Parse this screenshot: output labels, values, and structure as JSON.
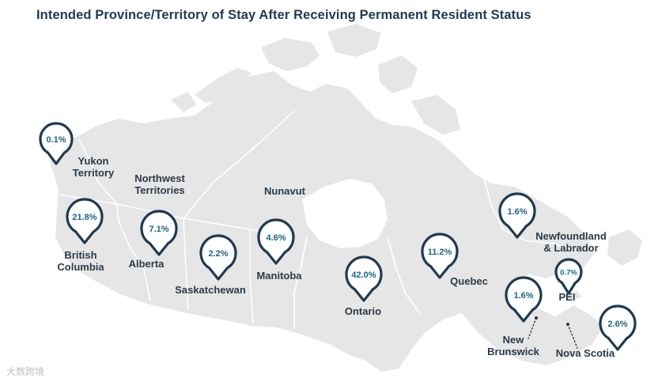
{
  "title": "Intended Province/Territory of Stay After Receiving Permanent Resident Status",
  "watermark": "大数跨境",
  "colors": {
    "map_fill": "#e6e6e6",
    "border": "#ffffff",
    "pin_stroke": "#1f3a52",
    "pin_text": "#1c6486",
    "label_text": "#2b3a47"
  },
  "labels": {
    "yukon": [
      "Yukon",
      "Territory"
    ],
    "nwt": [
      "Northwest",
      "Territories"
    ],
    "nunavut": [
      "Nunavut"
    ],
    "bc": [
      "British",
      "Columbia"
    ],
    "alberta": [
      "Alberta"
    ],
    "saskatchewan": [
      "Saskatchewan"
    ],
    "manitoba": [
      "Manitoba"
    ],
    "ontario": [
      "Ontario"
    ],
    "quebec": [
      "Quebec"
    ],
    "nl": [
      "Newfoundland",
      "& Labrador"
    ],
    "pei": [
      "PEI"
    ],
    "nb": [
      "New",
      "Brunswick"
    ],
    "ns": [
      "Nova Scotia"
    ]
  },
  "chart_data": {
    "type": "map",
    "title": "Intended Province/Territory of Stay After Receiving Permanent Resident Status",
    "unit": "%",
    "regions": [
      {
        "key": "yukon",
        "name": "Yukon Territory",
        "value": 0.1,
        "display": "0.1%"
      },
      {
        "key": "bc",
        "name": "British Columbia",
        "value": 21.8,
        "display": "21.8%"
      },
      {
        "key": "alberta",
        "name": "Alberta",
        "value": 7.1,
        "display": "7.1%"
      },
      {
        "key": "saskatchewan",
        "name": "Saskatchewan",
        "value": 2.2,
        "display": "2.2%"
      },
      {
        "key": "manitoba",
        "name": "Manitoba",
        "value": 4.6,
        "display": "4.6%"
      },
      {
        "key": "ontario",
        "name": "Ontario",
        "value": 42.0,
        "display": "42.0%"
      },
      {
        "key": "quebec",
        "name": "Quebec",
        "value": 11.2,
        "display": "11.2%"
      },
      {
        "key": "nl",
        "name": "Newfoundland & Labrador",
        "value": 1.6,
        "display": "1.6%"
      },
      {
        "key": "pei",
        "name": "PEI",
        "value": 0.7,
        "display": "0.7%"
      },
      {
        "key": "nb",
        "name": "New Brunswick",
        "value": 1.6,
        "display": "1.6%"
      },
      {
        "key": "ns",
        "name": "Nova Scotia",
        "value": 2.6,
        "display": "2.6%"
      },
      {
        "key": "nwt",
        "name": "Northwest Territories",
        "value": null,
        "display": ""
      },
      {
        "key": "nunavut",
        "name": "Nunavut",
        "value": null,
        "display": ""
      }
    ]
  }
}
